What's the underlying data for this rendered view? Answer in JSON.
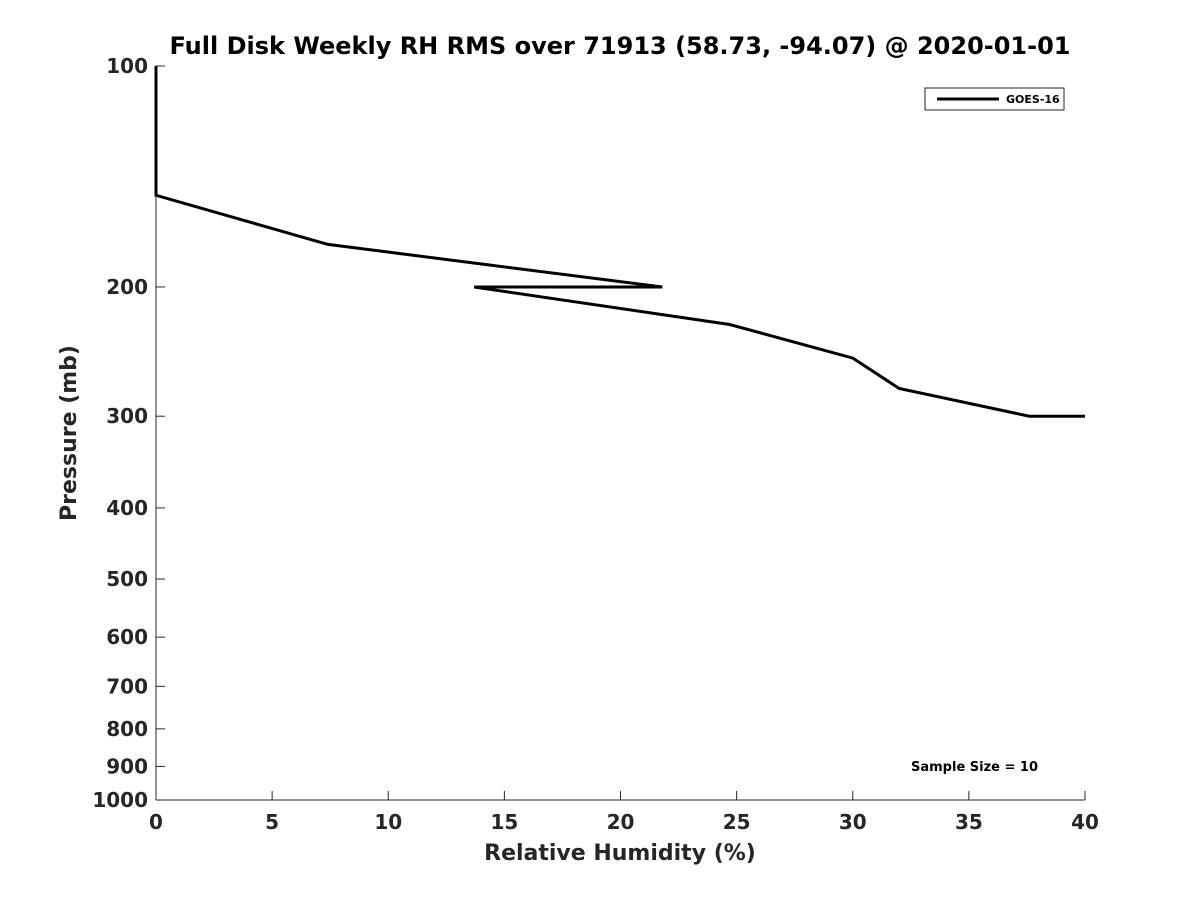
{
  "chart_data": {
    "type": "line",
    "title": "Full Disk Weekly RH RMS over 71913 (58.73, -94.07) @ 2020-01-01",
    "xlabel": "Relative Humidity (%)",
    "ylabel": "Pressure (mb)",
    "xlim": [
      0,
      40
    ],
    "ylim": [
      1000,
      100
    ],
    "yscale": "log",
    "y_reversed": true,
    "grid": false,
    "legend_placement": "top-right",
    "x_ticks": [
      0,
      5,
      10,
      15,
      20,
      25,
      30,
      35,
      40
    ],
    "y_ticks": [
      100,
      200,
      300,
      400,
      500,
      600,
      700,
      800,
      900,
      1000
    ],
    "series": [
      {
        "name": "GOES-16",
        "color": "#000000",
        "points": [
          {
            "x": 0,
            "y": 100
          },
          {
            "x": 0,
            "y": 150
          },
          {
            "x": 7.4,
            "y": 175
          },
          {
            "x": 21.8,
            "y": 200
          },
          {
            "x": 13.7,
            "y": 200
          },
          {
            "x": 24.7,
            "y": 225
          },
          {
            "x": 30.0,
            "y": 250
          },
          {
            "x": 32.0,
            "y": 275
          },
          {
            "x": 37.6,
            "y": 300
          },
          {
            "x": 40.0,
            "y": 300
          }
        ]
      }
    ],
    "annotation": "Sample Size = 10"
  }
}
